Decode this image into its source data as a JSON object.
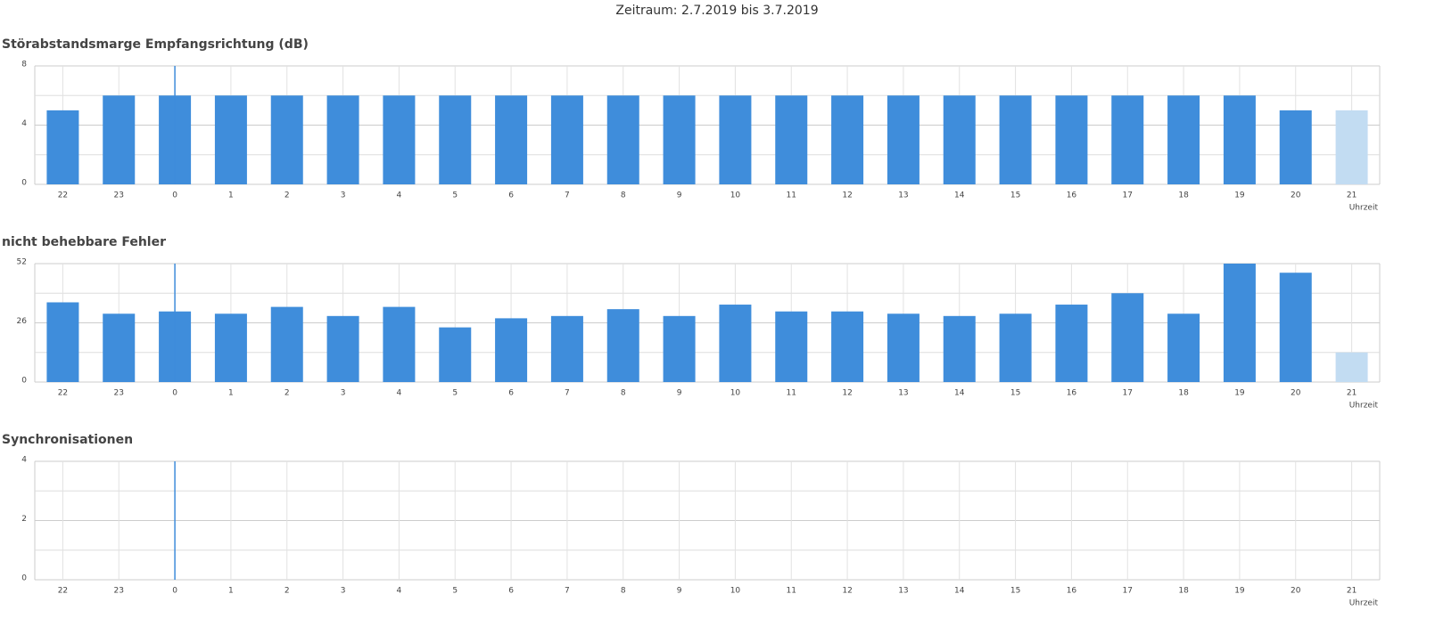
{
  "period": "Zeitraum: 2.7.2019 bis 3.7.2019",
  "chart_data": [
    {
      "type": "bar",
      "title": "Störabstandsmarge Empfangsrichtung (dB)",
      "x_label": "Uhrzeit",
      "categories": [
        "22",
        "23",
        "0",
        "1",
        "2",
        "3",
        "4",
        "5",
        "6",
        "7",
        "8",
        "9",
        "10",
        "11",
        "12",
        "13",
        "14",
        "15",
        "16",
        "17",
        "18",
        "19",
        "20",
        "21"
      ],
      "values": [
        5,
        6,
        6,
        6,
        6,
        6,
        6,
        6,
        6,
        6,
        6,
        6,
        6,
        6,
        6,
        6,
        6,
        6,
        6,
        6,
        6,
        6,
        5,
        5
      ],
      "bar_colors": [
        "#3f8ddb",
        "#3f8ddb",
        "#3f8ddb",
        "#3f8ddb",
        "#3f8ddb",
        "#3f8ddb",
        "#3f8ddb",
        "#3f8ddb",
        "#3f8ddb",
        "#3f8ddb",
        "#3f8ddb",
        "#3f8ddb",
        "#3f8ddb",
        "#3f8ddb",
        "#3f8ddb",
        "#3f8ddb",
        "#3f8ddb",
        "#3f8ddb",
        "#3f8ddb",
        "#3f8ddb",
        "#3f8ddb",
        "#3f8ddb",
        "#3f8ddb",
        "#c2dcf2"
      ],
      "ylim": [
        0,
        8
      ],
      "yticks": [
        0,
        4,
        8
      ],
      "minor_yticks": [
        2,
        6
      ],
      "grid": true,
      "marker_category": "0",
      "marker_color": "#3f8ddb"
    },
    {
      "type": "bar",
      "title": "nicht behebbare Fehler",
      "x_label": "Uhrzeit",
      "categories": [
        "22",
        "23",
        "0",
        "1",
        "2",
        "3",
        "4",
        "5",
        "6",
        "7",
        "8",
        "9",
        "10",
        "11",
        "12",
        "13",
        "14",
        "15",
        "16",
        "17",
        "18",
        "19",
        "20",
        "21"
      ],
      "values": [
        35,
        30,
        31,
        30,
        33,
        29,
        33,
        24,
        28,
        29,
        32,
        29,
        34,
        31,
        31,
        30,
        29,
        30,
        34,
        39,
        30,
        52,
        48,
        13
      ],
      "bar_colors": [
        "#3f8ddb",
        "#3f8ddb",
        "#3f8ddb",
        "#3f8ddb",
        "#3f8ddb",
        "#3f8ddb",
        "#3f8ddb",
        "#3f8ddb",
        "#3f8ddb",
        "#3f8ddb",
        "#3f8ddb",
        "#3f8ddb",
        "#3f8ddb",
        "#3f8ddb",
        "#3f8ddb",
        "#3f8ddb",
        "#3f8ddb",
        "#3f8ddb",
        "#3f8ddb",
        "#3f8ddb",
        "#3f8ddb",
        "#3f8ddb",
        "#3f8ddb",
        "#c2dcf2"
      ],
      "ylim": [
        0,
        52
      ],
      "yticks": [
        0,
        26,
        52
      ],
      "minor_yticks": [
        13,
        39
      ],
      "grid": true,
      "marker_category": "0",
      "marker_color": "#3f8ddb"
    },
    {
      "type": "bar",
      "title": "Synchronisationen",
      "x_label": "Uhrzeit",
      "categories": [
        "22",
        "23",
        "0",
        "1",
        "2",
        "3",
        "4",
        "5",
        "6",
        "7",
        "8",
        "9",
        "10",
        "11",
        "12",
        "13",
        "14",
        "15",
        "16",
        "17",
        "18",
        "19",
        "20",
        "21"
      ],
      "values": [
        0,
        0,
        0,
        0,
        0,
        0,
        0,
        0,
        0,
        0,
        0,
        0,
        0,
        0,
        0,
        0,
        0,
        0,
        0,
        0,
        0,
        0,
        0,
        0
      ],
      "bar_colors": [
        "#3f8ddb",
        "#3f8ddb",
        "#3f8ddb",
        "#3f8ddb",
        "#3f8ddb",
        "#3f8ddb",
        "#3f8ddb",
        "#3f8ddb",
        "#3f8ddb",
        "#3f8ddb",
        "#3f8ddb",
        "#3f8ddb",
        "#3f8ddb",
        "#3f8ddb",
        "#3f8ddb",
        "#3f8ddb",
        "#3f8ddb",
        "#3f8ddb",
        "#3f8ddb",
        "#3f8ddb",
        "#3f8ddb",
        "#3f8ddb",
        "#3f8ddb",
        "#c2dcf2"
      ],
      "ylim": [
        0,
        4
      ],
      "yticks": [
        0,
        2,
        4
      ],
      "minor_yticks": [
        1,
        3
      ],
      "grid": true,
      "marker_category": "0",
      "marker_color": "#3f8ddb"
    }
  ]
}
